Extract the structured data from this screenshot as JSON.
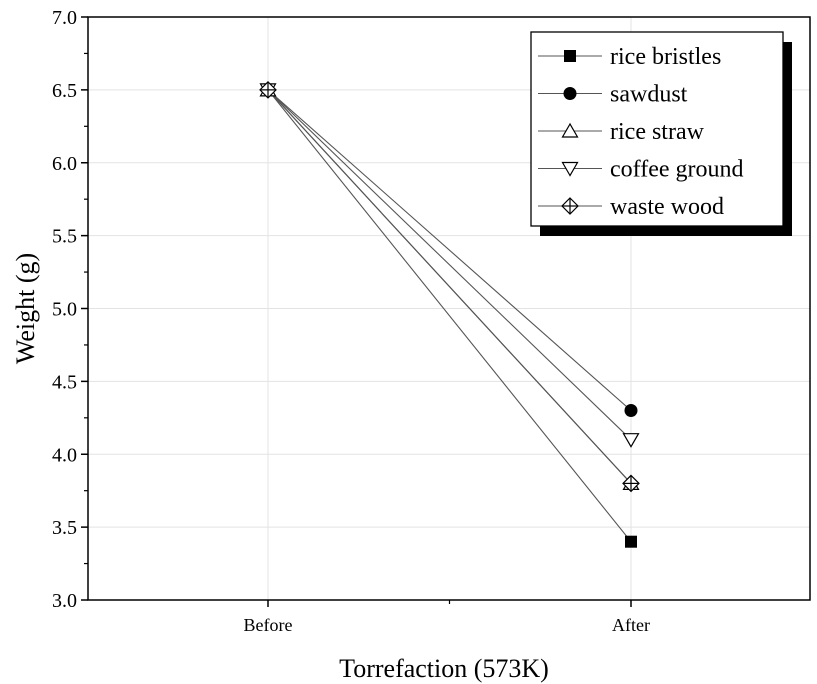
{
  "chart_data": {
    "type": "line",
    "xlabel": "Torrefaction (573K)",
    "ylabel": "Weight (g)",
    "categories": [
      "Before",
      "After"
    ],
    "ylim": [
      3.0,
      7.0
    ],
    "yticks": [
      "3.0",
      "3.5",
      "4.0",
      "4.5",
      "5.0",
      "5.5",
      "6.0",
      "6.5",
      "7.0"
    ],
    "grid": true,
    "legend_position": "top-right",
    "series": [
      {
        "name": "rice bristles",
        "marker": "filled-square",
        "values": [
          6.5,
          3.4
        ]
      },
      {
        "name": "sawdust",
        "marker": "filled-circle",
        "values": [
          6.5,
          4.3
        ]
      },
      {
        "name": "rice straw",
        "marker": "open-triangle-up",
        "values": [
          6.5,
          3.8
        ]
      },
      {
        "name": "coffee ground",
        "marker": "open-triangle-down",
        "values": [
          6.5,
          4.1
        ]
      },
      {
        "name": "waste wood",
        "marker": "crossed-diamond",
        "values": [
          6.5,
          3.8
        ]
      }
    ],
    "colors": {
      "line": "#555555",
      "marker": "#000000",
      "grid": "#e3e3e3",
      "axis": "#000000"
    }
  }
}
